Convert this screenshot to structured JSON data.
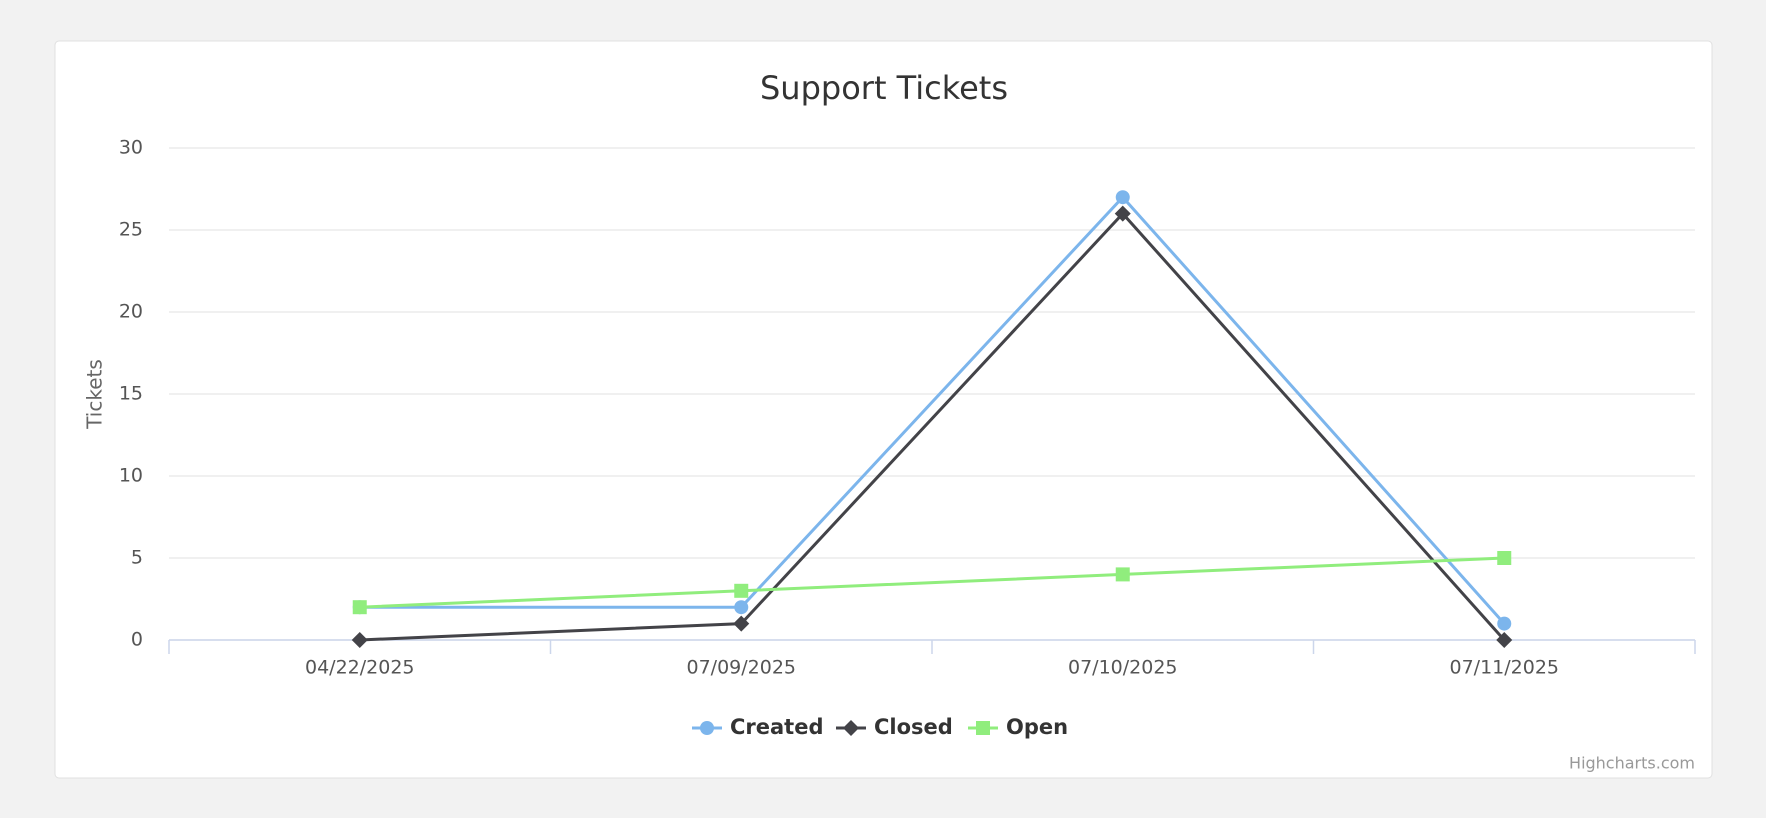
{
  "chart_data": {
    "type": "line",
    "title": "Support Tickets",
    "y_label": "Tickets",
    "categories": [
      "04/22/2025",
      "07/09/2025",
      "07/10/2025",
      "07/11/2025"
    ],
    "series": [
      {
        "name": "Created",
        "color": "#7cb5ec",
        "marker": "circle",
        "values": [
          2,
          2,
          27,
          1
        ]
      },
      {
        "name": "Closed",
        "color": "#434348",
        "marker": "diamond",
        "values": [
          0,
          1,
          26,
          0
        ]
      },
      {
        "name": "Open",
        "color": "#90ed7d",
        "marker": "square",
        "values": [
          2,
          3,
          4,
          5
        ]
      }
    ],
    "ylim": [
      0,
      30
    ],
    "yticks": [
      0,
      5,
      10,
      15,
      20,
      25,
      30
    ],
    "grid": true,
    "legend": "bottom",
    "credits": "Highcharts.com"
  }
}
